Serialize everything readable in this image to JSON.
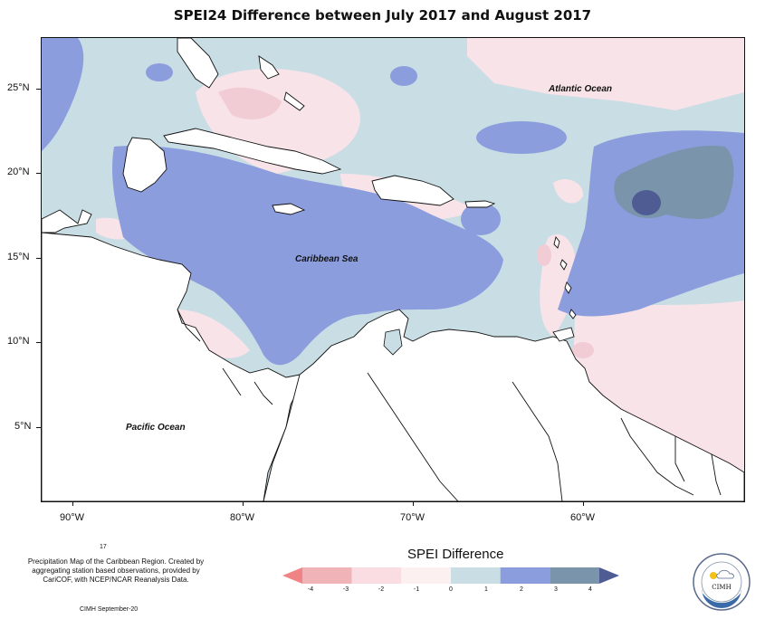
{
  "title": "SPEI24 Difference between July 2017 and August 2017",
  "latitude_labels": [
    "25°N",
    "20°N",
    "15°N",
    "10°N",
    "5°N"
  ],
  "longitude_labels": [
    "90°W",
    "80°W",
    "70°W",
    "60°W"
  ],
  "ocean_labels": {
    "atlantic": "Atlantic Ocean",
    "caribbean": "Caribbean Sea",
    "pacific": "Pacific Ocean"
  },
  "footnote": {
    "number": "17",
    "text": "Precipitation Map of the Caribbean Region. Created by aggregating station based observations, provided by CariCOF, with NCEP/NCAR Reanalysis Data.",
    "credit": "CIMH September-20"
  },
  "legend": {
    "title": "SPEI Difference",
    "labels": [
      "-4",
      "-3",
      "-2",
      "-1",
      "0",
      "1",
      "2",
      "3",
      "4"
    ],
    "colors": [
      "#f08484",
      "#f0b4b8",
      "#f9dde2",
      "#fcf0f1",
      "#c8dde4",
      "#8b9ddd",
      "#7a94ac",
      "#4f5c94"
    ]
  },
  "logo": {
    "text": "CIMH"
  }
}
